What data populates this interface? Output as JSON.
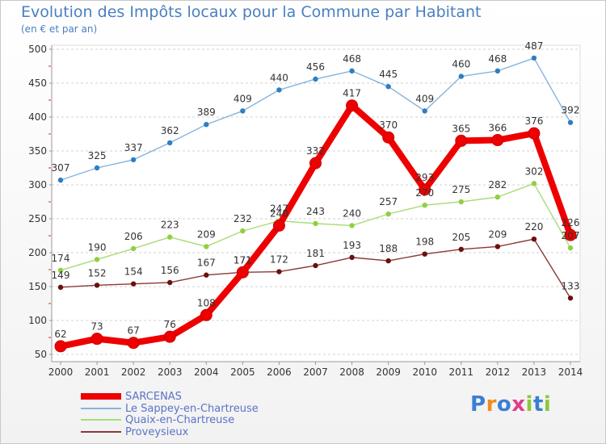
{
  "header": {
    "title": "Evolution des Impôts locaux pour la Commune par Habitant",
    "subtitle": "(en € et par an)"
  },
  "brand": {
    "text": "Proxiti",
    "letters": [
      "P",
      "r",
      "o",
      "x",
      "i",
      "t",
      "i"
    ],
    "colors": [
      "#3a7fd5",
      "#f08c1e",
      "#3a7fd5",
      "#e03c8c",
      "#8cc83c",
      "#3a7fd5",
      "#8cc83c"
    ]
  },
  "chart_data": {
    "type": "line",
    "title": "Evolution des Impôts locaux pour la Commune par Habitant",
    "subtitle": "(en € et par an)",
    "xlabel": "",
    "ylabel": "",
    "x": [
      "2000",
      "2001",
      "2002",
      "2003",
      "2004",
      "2005",
      "2006",
      "2007",
      "2008",
      "2009",
      "2010",
      "2011",
      "2012",
      "2013",
      "2014"
    ],
    "ylim": [
      50,
      500
    ],
    "yticks": [
      "50",
      "100",
      "150",
      "200",
      "250",
      "300",
      "350",
      "400",
      "450",
      "500"
    ],
    "grid": "horizontal dashed",
    "legend_position": "bottom-left",
    "series": [
      {
        "name": "SARCENAS",
        "color": "#ee0000",
        "line": "#ee0000",
        "values": [
          62,
          73,
          67,
          76,
          108,
          171,
          240,
          332,
          417,
          370,
          293,
          365,
          366,
          376,
          226
        ],
        "labels": [
          "62",
          "73",
          "67",
          "76",
          "108",
          "171",
          "240",
          "332",
          "417",
          "370",
          "293",
          "365",
          "366",
          "376",
          "226"
        ]
      },
      {
        "name": "Le Sappey-en-Chartreuse",
        "color": "#2e7ec2",
        "line": "#86b3dc",
        "values": [
          307,
          325,
          337,
          362,
          389,
          409,
          440,
          456,
          468,
          445,
          409,
          460,
          468,
          487,
          392
        ],
        "labels": [
          "307",
          "325",
          "337",
          "362",
          "389",
          "409",
          "440",
          "456",
          "468",
          "445",
          "409",
          "460",
          "468",
          "487",
          "392"
        ]
      },
      {
        "name": "Quaix-en-Chartreuse",
        "color": "#90d040",
        "line": "#a8dc78",
        "values": [
          174,
          190,
          206,
          223,
          209,
          232,
          247,
          243,
          240,
          257,
          270,
          275,
          282,
          302,
          207
        ],
        "labels": [
          "174",
          "190",
          "206",
          "223",
          "209",
          "232",
          "247",
          "243",
          "240",
          "257",
          "270",
          "275",
          "282",
          "302",
          "207"
        ]
      },
      {
        "name": "Proveysieux",
        "color": "#6a1010",
        "line": "#8a3838",
        "values": [
          149,
          152,
          154,
          156,
          167,
          171,
          172,
          181,
          193,
          188,
          198,
          205,
          209,
          220,
          133
        ],
        "labels": [
          "149",
          "152",
          "154",
          "156",
          "167",
          "171",
          "172",
          "181",
          "193",
          "188",
          "198",
          "205",
          "209",
          "220",
          "133"
        ]
      }
    ]
  }
}
